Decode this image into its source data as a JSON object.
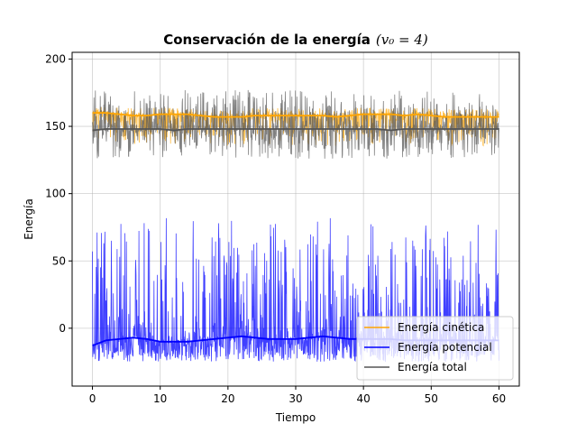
{
  "chart_data": {
    "type": "line",
    "title": "Conservación de la energía",
    "title_math": "(v₀ = 4)",
    "xlabel": "Tiempo",
    "ylabel": "Energía",
    "xlim": [
      -3,
      63
    ],
    "ylim": [
      -43,
      205
    ],
    "xticks": [
      0,
      10,
      20,
      30,
      40,
      50,
      60
    ],
    "yticks": [
      0,
      50,
      100,
      150,
      200
    ],
    "grid": true,
    "legend_position": "lower-right",
    "series": [
      {
        "name": "Energía cinética",
        "color": "#ffa500",
        "mean_x": [
          0,
          2,
          4,
          6,
          8,
          10,
          12,
          14,
          16,
          18,
          20,
          22,
          24,
          26,
          28,
          30,
          32,
          34,
          36,
          38,
          40,
          42,
          44,
          46,
          48,
          50,
          52,
          54,
          56,
          58,
          60
        ],
        "mean_y": [
          160,
          160,
          159,
          158,
          158,
          159,
          159,
          159,
          158,
          157,
          157,
          157,
          158,
          158,
          158,
          158,
          158,
          158,
          157,
          158,
          159,
          159,
          159,
          158,
          159,
          158,
          157,
          157,
          157,
          157,
          157
        ],
        "fluct_min": 114,
        "fluct_max": 168
      },
      {
        "name": "Energía potencial",
        "color": "#0000ff",
        "mean_x": [
          0,
          2,
          4,
          6,
          8,
          10,
          12,
          14,
          16,
          18,
          20,
          22,
          24,
          26,
          28,
          30,
          32,
          34,
          36,
          38,
          40,
          42,
          44,
          46,
          48,
          50,
          52,
          54,
          56,
          58,
          60
        ],
        "mean_y": [
          -13,
          -9,
          -8,
          -7,
          -8,
          -10,
          -10,
          -10,
          -9,
          -8,
          -7,
          -6,
          -7,
          -8,
          -8,
          -8,
          -7,
          -6,
          -7,
          -8,
          -8,
          -8,
          -8,
          -9,
          -9,
          -9,
          -9,
          -9,
          -9,
          -9,
          -9
        ],
        "fluct_min": -25,
        "fluct_max": 82
      },
      {
        "name": "Energía total",
        "color": "#555555",
        "mean_x": [
          0,
          2,
          4,
          6,
          8,
          10,
          12,
          14,
          16,
          18,
          20,
          22,
          24,
          26,
          28,
          30,
          32,
          34,
          36,
          38,
          40,
          42,
          44,
          46,
          48,
          50,
          52,
          54,
          56,
          58,
          60
        ],
        "mean_y": [
          147,
          148,
          148,
          148,
          148,
          148,
          147,
          148,
          148,
          148,
          148,
          148,
          148,
          148,
          148,
          148,
          148,
          148,
          148,
          148,
          148,
          148,
          147,
          148,
          148,
          148,
          148,
          148,
          148,
          148,
          148
        ],
        "fluct_min": 126,
        "fluct_max": 177
      }
    ]
  }
}
